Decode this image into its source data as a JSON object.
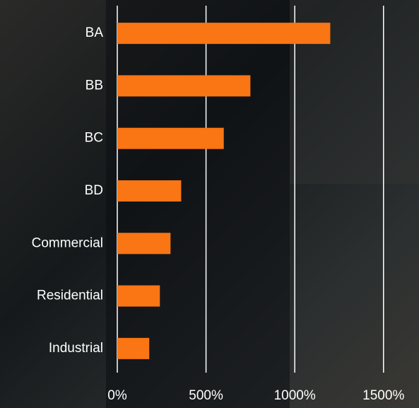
{
  "chart_data": {
    "type": "bar",
    "orientation": "horizontal",
    "categories": [
      "BA",
      "BB",
      "BC",
      "BD",
      "Commercial",
      "Residential",
      "Industrial"
    ],
    "values": [
      1200,
      750,
      600,
      360,
      300,
      240,
      180
    ],
    "color": "#fa7514",
    "xlim": [
      0,
      1700
    ],
    "xticks": [
      {
        "value": 0,
        "label": "0%"
      },
      {
        "value": 500,
        "label": "500%"
      },
      {
        "value": 1000,
        "label": "1000%"
      },
      {
        "value": 1500,
        "label": "1500%"
      }
    ],
    "grid": true
  }
}
